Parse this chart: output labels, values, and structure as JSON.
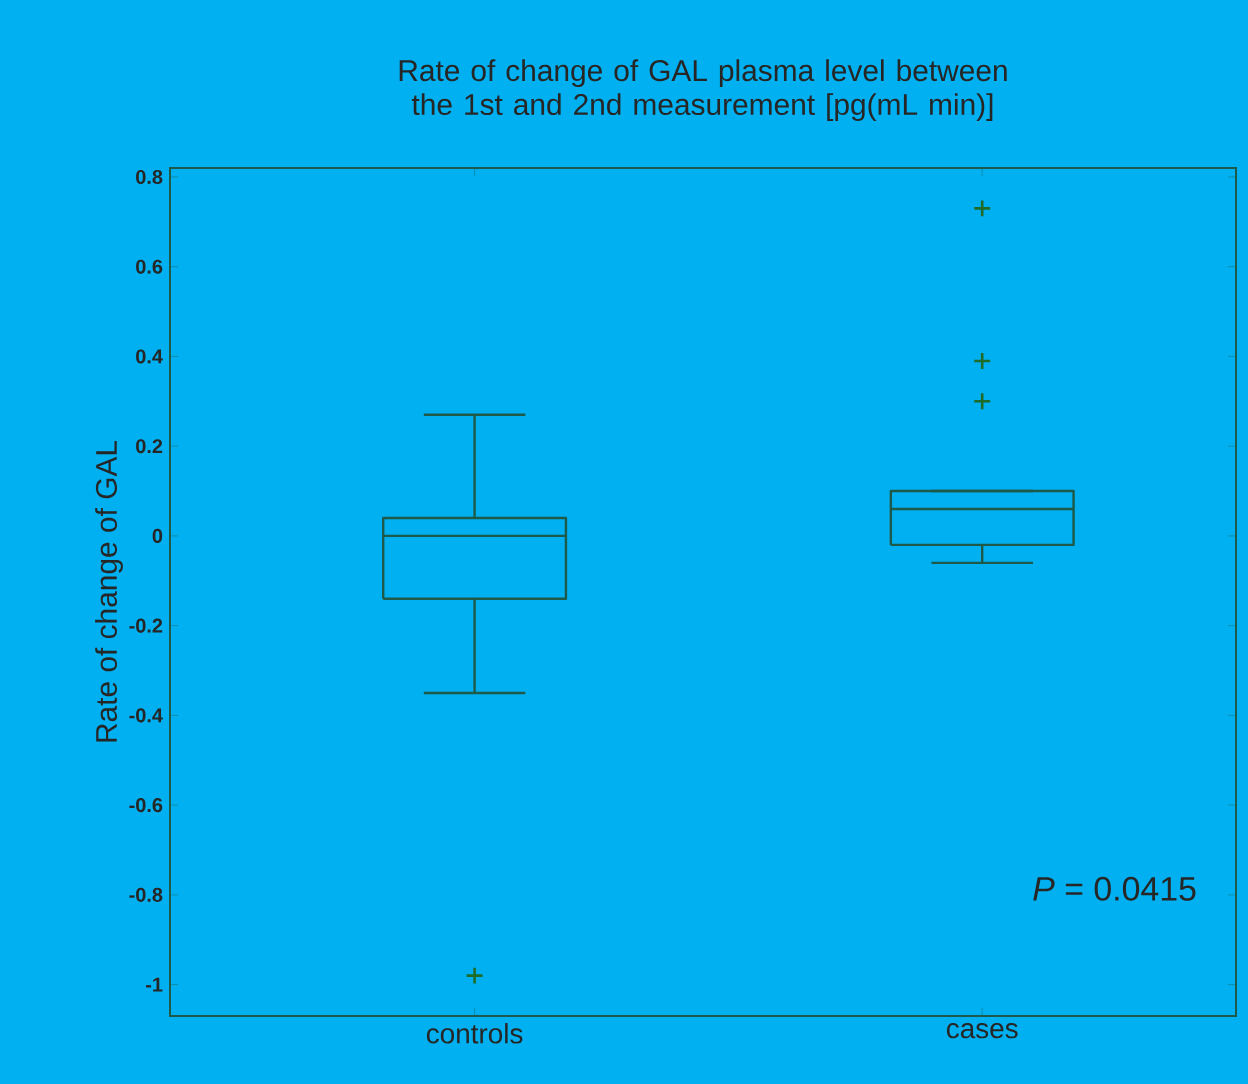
{
  "chart_data": {
    "type": "box",
    "title": "Rate of change of GAL plasma level between the 1st and 2nd measurement [pg(mL min)]",
    "ylabel": "Rate of change of GAL",
    "categories": [
      "controls",
      "cases"
    ],
    "color": "#1d5a4a",
    "boxes": [
      {
        "low": -0.35,
        "q1": -0.14,
        "median": 0.0,
        "q3": 0.04,
        "high": 0.27,
        "outliers": [
          -0.98
        ]
      },
      {
        "low": -0.06,
        "q1": -0.02,
        "median": 0.06,
        "q3": 0.1,
        "high": 0.1,
        "outliers": [
          0.73,
          0.39,
          0.3
        ]
      }
    ],
    "ylim": [
      -1.07,
      0.82
    ],
    "yticks": [
      -1,
      -0.8,
      -0.6,
      -0.4,
      -0.2,
      0,
      0.2,
      0.4,
      0.6,
      0.8
    ],
    "grid": false,
    "annotations": [
      "*P* = 0.0415"
    ]
  }
}
